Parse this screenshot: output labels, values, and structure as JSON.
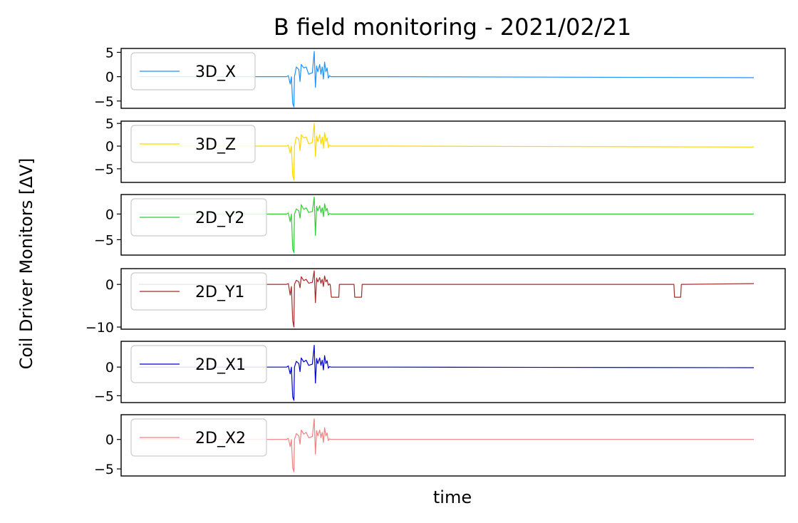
{
  "chart_data": {
    "type": "line",
    "title": "B field monitoring - 2021/02/21",
    "xlabel": "time",
    "ylabel": "Coil Driver Monitors [ΔV]",
    "xlim": [
      0,
      1000
    ],
    "x_ticks_visible": false,
    "grid": false,
    "legend_placement": "upper-left",
    "panels": [
      {
        "name": "3D_X",
        "color": "#1e90ff",
        "ylim": [
          -6.5,
          5.8
        ],
        "yticks": [
          {
            "value": 5,
            "label": "5"
          },
          {
            "value": 0,
            "label": "0"
          },
          {
            "value": -5,
            "label": "−5"
          }
        ],
        "points": [
          [
            0,
            0
          ],
          [
            240,
            0
          ],
          [
            243,
            0.2
          ],
          [
            246,
            -1.5
          ],
          [
            248,
            0
          ],
          [
            250,
            -5.5
          ],
          [
            252,
            -6.2
          ],
          [
            253,
            0
          ],
          [
            256,
            2
          ],
          [
            260,
            1.5
          ],
          [
            262,
            -1
          ],
          [
            264,
            2.5
          ],
          [
            268,
            1.8
          ],
          [
            272,
            2
          ],
          [
            276,
            0.5
          ],
          [
            282,
            0.8
          ],
          [
            285,
            5.2
          ],
          [
            287,
            -2.2
          ],
          [
            289,
            2.2
          ],
          [
            291,
            1
          ],
          [
            294,
            2.5
          ],
          [
            296,
            0.5
          ],
          [
            298,
            2
          ],
          [
            300,
            -0.5
          ],
          [
            302,
            3
          ],
          [
            304,
            1
          ],
          [
            306,
            1.8
          ],
          [
            308,
            -0.3
          ],
          [
            310,
            0.2
          ],
          [
            312,
            0
          ],
          [
            400,
            0
          ],
          [
            1000,
            -0.2
          ]
        ]
      },
      {
        "name": "3D_Z",
        "color": "#ffd700",
        "ylim": [
          -8,
          5.5
        ],
        "yticks": [
          {
            "value": 5,
            "label": "5"
          },
          {
            "value": 0,
            "label": "0"
          },
          {
            "value": -5,
            "label": "−5"
          }
        ],
        "points": [
          [
            0,
            0
          ],
          [
            240,
            0
          ],
          [
            243,
            0.2
          ],
          [
            246,
            -1.5
          ],
          [
            248,
            0
          ],
          [
            250,
            -6.5
          ],
          [
            252,
            -7.5
          ],
          [
            253,
            0
          ],
          [
            256,
            2
          ],
          [
            260,
            1.5
          ],
          [
            262,
            -1
          ],
          [
            264,
            2.5
          ],
          [
            268,
            1.8
          ],
          [
            272,
            2
          ],
          [
            276,
            0.5
          ],
          [
            282,
            0.8
          ],
          [
            285,
            5
          ],
          [
            287,
            -2.3
          ],
          [
            289,
            2.2
          ],
          [
            291,
            1
          ],
          [
            294,
            2.5
          ],
          [
            296,
            0.5
          ],
          [
            298,
            2
          ],
          [
            300,
            -0.5
          ],
          [
            302,
            3
          ],
          [
            304,
            1
          ],
          [
            306,
            1.8
          ],
          [
            308,
            -0.3
          ],
          [
            310,
            0.2
          ],
          [
            312,
            0
          ],
          [
            400,
            0
          ],
          [
            1000,
            -0.2
          ]
        ]
      },
      {
        "name": "2D_Y2",
        "color": "#32cd32",
        "ylim": [
          -8,
          3.8
        ],
        "yticks": [
          {
            "value": 0,
            "label": "0"
          },
          {
            "value": -5,
            "label": "−5"
          }
        ],
        "points": [
          [
            0,
            0
          ],
          [
            240,
            0
          ],
          [
            243,
            0.2
          ],
          [
            246,
            -1.5
          ],
          [
            248,
            0
          ],
          [
            250,
            -6.8
          ],
          [
            252,
            -7.5
          ],
          [
            253,
            0
          ],
          [
            256,
            1
          ],
          [
            260,
            0.6
          ],
          [
            262,
            -0.8
          ],
          [
            264,
            1.8
          ],
          [
            268,
            0.9
          ],
          [
            272,
            1.2
          ],
          [
            276,
            0.3
          ],
          [
            282,
            0.5
          ],
          [
            285,
            3.3
          ],
          [
            287,
            -4.2
          ],
          [
            289,
            1.5
          ],
          [
            291,
            0.6
          ],
          [
            294,
            1.6
          ],
          [
            296,
            0.3
          ],
          [
            298,
            1.2
          ],
          [
            300,
            -0.5
          ],
          [
            302,
            2
          ],
          [
            304,
            0.6
          ],
          [
            306,
            1.1
          ],
          [
            308,
            -0.2
          ],
          [
            310,
            0.1
          ],
          [
            312,
            0
          ],
          [
            400,
            0
          ],
          [
            1000,
            0
          ]
        ]
      },
      {
        "name": "2D_Y1",
        "color": "#a52a2a",
        "ylim": [
          -10.5,
          3.7
        ],
        "yticks": [
          {
            "value": 0,
            "label": "0"
          },
          {
            "value": -10,
            "label": "−10"
          }
        ],
        "points": [
          [
            0,
            0
          ],
          [
            240,
            0
          ],
          [
            243,
            0.2
          ],
          [
            246,
            -2.5
          ],
          [
            248,
            -0.5
          ],
          [
            250,
            -8.5
          ],
          [
            252,
            -10
          ],
          [
            253,
            0
          ],
          [
            256,
            1
          ],
          [
            260,
            0.6
          ],
          [
            262,
            -0.8
          ],
          [
            264,
            1.8
          ],
          [
            268,
            0.9
          ],
          [
            272,
            1.2
          ],
          [
            276,
            0.3
          ],
          [
            282,
            0.5
          ],
          [
            285,
            3.2
          ],
          [
            287,
            -4.3
          ],
          [
            289,
            1.5
          ],
          [
            291,
            0.6
          ],
          [
            294,
            1.6
          ],
          [
            296,
            0.3
          ],
          [
            298,
            1.2
          ],
          [
            300,
            -0.5
          ],
          [
            302,
            2
          ],
          [
            304,
            0.6
          ],
          [
            306,
            1.1
          ],
          [
            308,
            -0.2
          ],
          [
            310,
            0.1
          ],
          [
            311,
            0
          ],
          [
            313,
            -3
          ],
          [
            325,
            -3
          ],
          [
            326,
            0
          ],
          [
            350,
            0
          ],
          [
            351,
            -3
          ],
          [
            362,
            -3
          ],
          [
            363,
            0
          ],
          [
            870,
            0
          ],
          [
            871,
            -3
          ],
          [
            881,
            -3
          ],
          [
            882,
            0
          ],
          [
            1000,
            0.2
          ]
        ]
      },
      {
        "name": "2D_X1",
        "color": "#0000cd",
        "ylim": [
          -6.2,
          4.5
        ],
        "yticks": [
          {
            "value": 0,
            "label": "0"
          },
          {
            "value": -5,
            "label": "−5"
          }
        ],
        "points": [
          [
            0,
            0
          ],
          [
            240,
            0
          ],
          [
            243,
            0.2
          ],
          [
            246,
            -1.2
          ],
          [
            248,
            0
          ],
          [
            250,
            -5.2
          ],
          [
            252,
            -5.8
          ],
          [
            253,
            0
          ],
          [
            256,
            1
          ],
          [
            260,
            0.6
          ],
          [
            262,
            -0.8
          ],
          [
            264,
            1.6
          ],
          [
            268,
            0.9
          ],
          [
            272,
            1.2
          ],
          [
            276,
            0.3
          ],
          [
            282,
            0.5
          ],
          [
            285,
            3.8
          ],
          [
            287,
            -2.8
          ],
          [
            289,
            1.5
          ],
          [
            291,
            0.6
          ],
          [
            294,
            1.6
          ],
          [
            296,
            0.3
          ],
          [
            298,
            1.2
          ],
          [
            300,
            -0.5
          ],
          [
            302,
            2
          ],
          [
            304,
            0.6
          ],
          [
            306,
            1.1
          ],
          [
            308,
            -0.2
          ],
          [
            310,
            0.1
          ],
          [
            312,
            0
          ],
          [
            400,
            0
          ],
          [
            1000,
            -0.1
          ]
        ]
      },
      {
        "name": "2D_X2",
        "color": "#f08080",
        "ylim": [
          -6.2,
          4.2
        ],
        "yticks": [
          {
            "value": 0,
            "label": "0"
          },
          {
            "value": -5,
            "label": "−5"
          }
        ],
        "points": [
          [
            0,
            0
          ],
          [
            240,
            0
          ],
          [
            243,
            0.2
          ],
          [
            246,
            -1.2
          ],
          [
            248,
            0
          ],
          [
            250,
            -4.8
          ],
          [
            252,
            -5.5
          ],
          [
            253,
            0
          ],
          [
            256,
            1
          ],
          [
            260,
            0.6
          ],
          [
            262,
            -0.8
          ],
          [
            264,
            1.6
          ],
          [
            268,
            0.9
          ],
          [
            272,
            1.2
          ],
          [
            276,
            0.3
          ],
          [
            282,
            0.5
          ],
          [
            285,
            3.5
          ],
          [
            287,
            -2.5
          ],
          [
            289,
            1.5
          ],
          [
            291,
            0.6
          ],
          [
            294,
            1.6
          ],
          [
            296,
            0.3
          ],
          [
            298,
            1.2
          ],
          [
            300,
            -0.5
          ],
          [
            302,
            2
          ],
          [
            304,
            0.6
          ],
          [
            306,
            1.1
          ],
          [
            308,
            -0.2
          ],
          [
            310,
            0.1
          ],
          [
            312,
            0
          ],
          [
            400,
            0
          ],
          [
            1000,
            0
          ]
        ]
      }
    ]
  }
}
